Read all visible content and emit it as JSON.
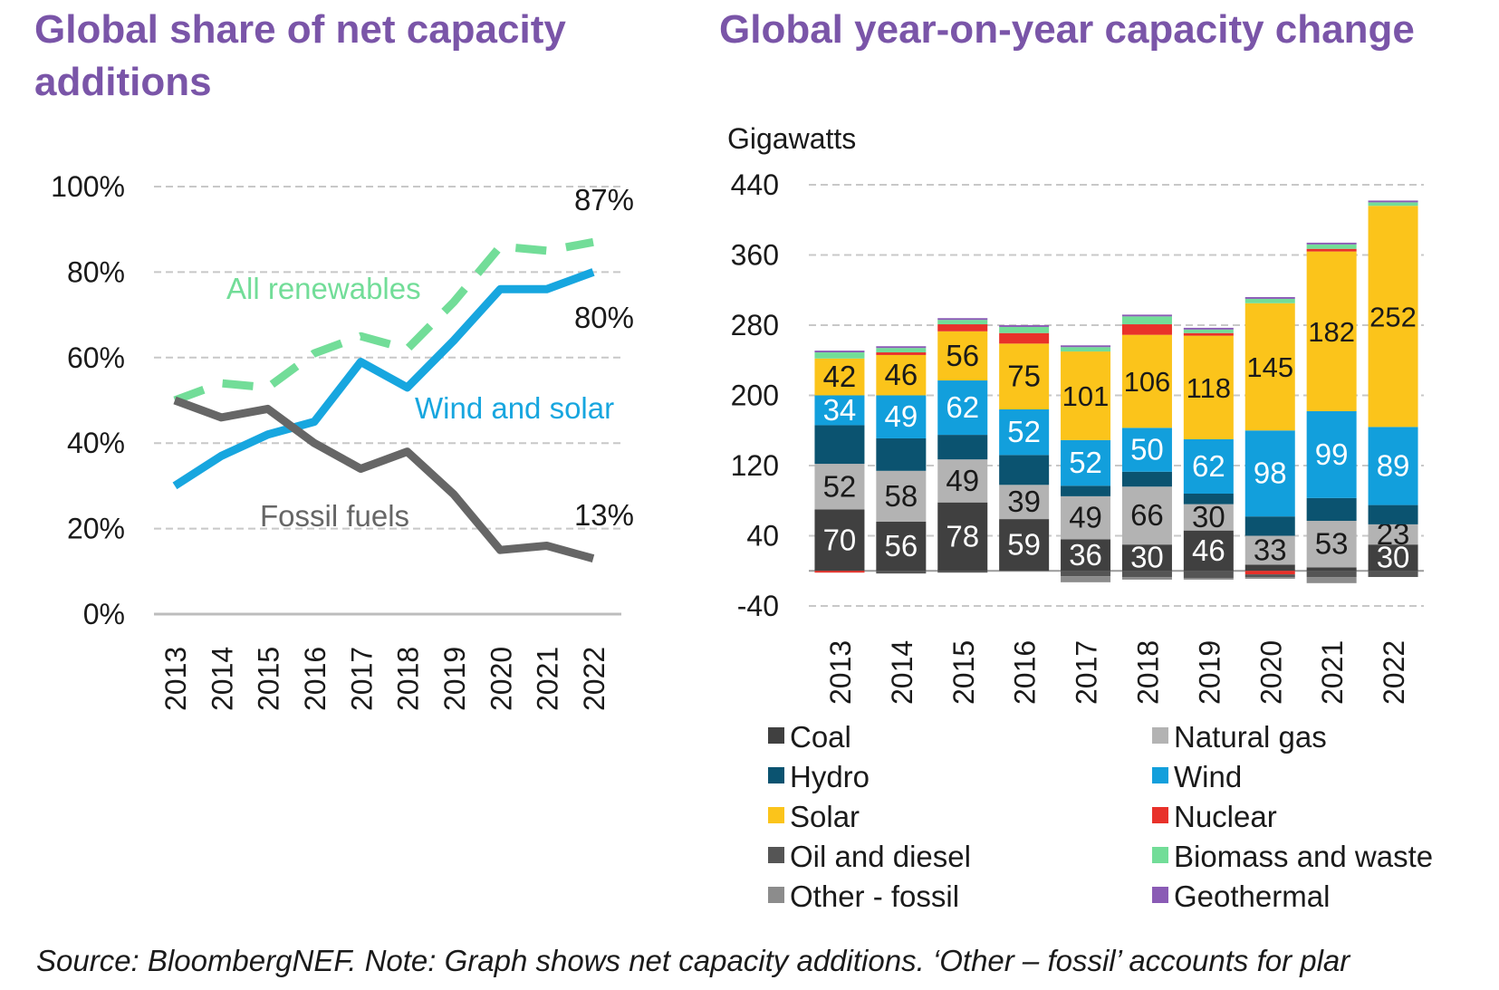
{
  "left_title": "Global share of net capacity additions",
  "right_title": "Global year-on-year capacity change",
  "source_note": "Source: BloombergNEF. Note: Graph shows net capacity additions. ‘Other – fossil’ accounts for plar",
  "colors": {
    "title": "#7a55a8",
    "coal": "#404040",
    "natural_gas": "#b3b3b3",
    "hydro": "#0b5370",
    "wind": "#129fdc",
    "solar": "#fbc41b",
    "nuclear": "#e8312a",
    "oil_diesel": "#555555",
    "biomass": "#72dd98",
    "other_fossil": "#8c8c8c",
    "geothermal": "#8a5bb5",
    "line_wind_solar": "#17a6df",
    "line_renewables": "#72dd98",
    "line_fossil": "#666666"
  },
  "chart_data": [
    {
      "type": "line",
      "title": "Global share of net capacity additions",
      "x": [
        "2013",
        "2014",
        "2015",
        "2016",
        "2017",
        "2018",
        "2019",
        "2020",
        "2021",
        "2022"
      ],
      "ylim": [
        0,
        100
      ],
      "y_ticks": [
        "0%",
        "20%",
        "40%",
        "60%",
        "80%",
        "100%"
      ],
      "grid": true,
      "series": [
        {
          "name": "All renewables",
          "style": "dashed",
          "values": [
            50,
            54,
            53,
            61,
            65,
            62,
            73,
            86,
            85,
            87
          ]
        },
        {
          "name": "Wind and solar",
          "style": "solid",
          "values": [
            30,
            37,
            42,
            45,
            59,
            53,
            64,
            76,
            76,
            80
          ]
        },
        {
          "name": "Fossil fuels",
          "style": "solid",
          "values": [
            50,
            46,
            48,
            40,
            34,
            38,
            28,
            15,
            16,
            13
          ]
        }
      ],
      "annotations": [
        "87%",
        "80%",
        "13%"
      ]
    },
    {
      "type": "bar",
      "stacked": true,
      "title": "Global year-on-year capacity change",
      "ylabel": "Gigawatts",
      "categories": [
        "2013",
        "2014",
        "2015",
        "2016",
        "2017",
        "2018",
        "2019",
        "2020",
        "2021",
        "2022"
      ],
      "ylim": [
        -40,
        440
      ],
      "y_ticks": [
        "-40",
        "40",
        "120",
        "200",
        "280",
        "360",
        "440"
      ],
      "grid": true,
      "legend": "bottom",
      "series": [
        {
          "name": "Coal",
          "values": [
            70,
            56,
            78,
            59,
            36,
            30,
            46,
            7,
            4,
            30
          ]
        },
        {
          "name": "Natural gas",
          "values": [
            52,
            58,
            49,
            39,
            49,
            66,
            30,
            33,
            53,
            23
          ]
        },
        {
          "name": "Hydro",
          "values": [
            44,
            37,
            28,
            34,
            12,
            17,
            12,
            22,
            26,
            22
          ]
        },
        {
          "name": "Wind",
          "values": [
            34,
            49,
            62,
            52,
            52,
            50,
            62,
            98,
            99,
            89
          ]
        },
        {
          "name": "Solar",
          "values": [
            42,
            46,
            56,
            75,
            101,
            106,
            118,
            145,
            182,
            252
          ]
        },
        {
          "name": "Nuclear",
          "values": [
            -2,
            3,
            8,
            12,
            0,
            12,
            3,
            -4,
            3,
            0
          ]
        },
        {
          "name": "Oil and diesel",
          "values": [
            0,
            -3,
            -2,
            0,
            -6,
            -7,
            -8,
            -3,
            -7,
            -7
          ]
        },
        {
          "name": "Biomass and waste",
          "values": [
            7,
            5,
            5,
            7,
            5,
            9,
            4,
            5,
            5,
            4
          ]
        },
        {
          "name": "Other - fossil",
          "values": [
            0,
            0,
            0,
            0,
            -7,
            -3,
            -2,
            -2,
            -7,
            0
          ]
        },
        {
          "name": "Geothermal",
          "values": [
            2,
            2,
            2,
            2,
            2,
            2,
            2,
            2,
            2,
            2
          ]
        }
      ],
      "data_labels": {
        "Coal": [
          "70",
          "56",
          "78",
          "59",
          "36",
          "30",
          "46",
          "",
          "",
          "30"
        ],
        "Natural gas": [
          "52",
          "58",
          "49",
          "39",
          "49",
          "66",
          "30",
          "33",
          "53",
          "23"
        ],
        "Wind": [
          "34",
          "49",
          "62",
          "52",
          "52",
          "50",
          "62",
          "98",
          "99",
          "89"
        ],
        "Solar": [
          "42",
          "46",
          "56",
          "75",
          "101",
          "106",
          "118",
          "145",
          "182",
          "252"
        ]
      }
    }
  ]
}
